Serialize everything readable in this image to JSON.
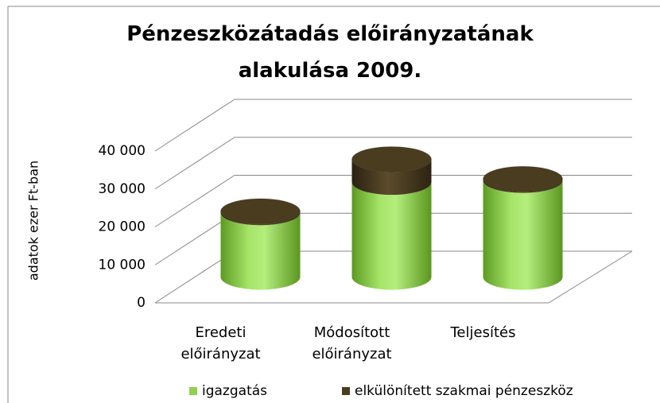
{
  "chart_data": {
    "type": "cylinder-stacked",
    "title": "Pénzeszközátadás előirányzatának alakulása 2009.",
    "y_label": "adatok ezer Ft-ban",
    "categories": [
      "Eredeti előirányzat",
      "Módosított előirányzat",
      "Teljesítés"
    ],
    "series": [
      {
        "name": "igazgatás",
        "color": "#92d050",
        "values": [
          17000,
          25000,
          25500
        ]
      },
      {
        "name": "elkülönített szakmai pénzeszköz",
        "color": "#4a3c1e",
        "values": [
          300,
          6000,
          300
        ]
      }
    ],
    "ylim": [
      0,
      40000
    ],
    "yticks": [
      0,
      {
        "value": 10000,
        "label": "10 000"
      },
      {
        "value": 20000,
        "label": "20 000"
      },
      {
        "value": 30000,
        "label": "30 000"
      },
      {
        "value": 40000,
        "label": "40 000"
      }
    ],
    "grid": true,
    "legend": "bottom"
  }
}
